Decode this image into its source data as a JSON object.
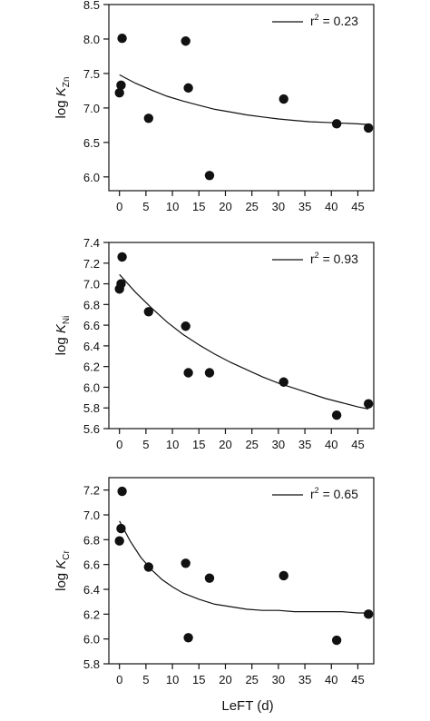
{
  "chart_data": [
    {
      "type": "scatter",
      "ylabel": {
        "prefix": "log ",
        "symbol": "K",
        "subscript": "Zn"
      },
      "xlim": [
        -2,
        48
      ],
      "ylim": [
        5.8,
        8.5
      ],
      "xticks": [
        0,
        5,
        10,
        15,
        20,
        25,
        30,
        35,
        40,
        45
      ],
      "yticks": [
        "6.0",
        "6.5",
        "7.0",
        "7.5",
        "8.0",
        "8.5"
      ],
      "points": {
        "x": [
          0,
          0.3,
          0.5,
          5.5,
          12.5,
          13,
          17,
          31,
          41,
          47
        ],
        "y": [
          7.22,
          7.33,
          8.01,
          6.85,
          7.97,
          7.29,
          6.02,
          7.13,
          6.77,
          6.71
        ]
      },
      "fit": {
        "x": [
          0,
          3,
          6,
          9,
          12,
          15,
          18,
          21,
          24,
          27,
          30,
          33,
          36,
          39,
          42,
          45,
          47
        ],
        "y": [
          7.48,
          7.36,
          7.26,
          7.17,
          7.1,
          7.04,
          6.98,
          6.94,
          6.9,
          6.87,
          6.84,
          6.82,
          6.8,
          6.79,
          6.78,
          6.77,
          6.76
        ]
      },
      "legend": {
        "label_prefix": "r",
        "label_exp": "2",
        "label_value": " = 0.23",
        "position": "top-right"
      }
    },
    {
      "type": "scatter",
      "ylabel": {
        "prefix": "log ",
        "symbol": "K",
        "subscript": "Ni"
      },
      "xlim": [
        -2,
        48
      ],
      "ylim": [
        5.6,
        7.4
      ],
      "xticks": [
        0,
        5,
        10,
        15,
        20,
        25,
        30,
        35,
        40,
        45
      ],
      "yticks": [
        "5.6",
        "5.8",
        "6.0",
        "6.2",
        "6.4",
        "6.6",
        "6.8",
        "7.0",
        "7.2",
        "7.4"
      ],
      "points": {
        "x": [
          0,
          0.3,
          0.5,
          5.5,
          12.5,
          13,
          17,
          31,
          41,
          47
        ],
        "y": [
          6.95,
          7.0,
          7.26,
          6.73,
          6.59,
          6.14,
          6.14,
          6.05,
          5.73,
          5.84
        ]
      },
      "fit": {
        "x": [
          0,
          3,
          6,
          9,
          12,
          15,
          18,
          21,
          24,
          27,
          30,
          33,
          36,
          39,
          42,
          45,
          47
        ],
        "y": [
          7.09,
          6.92,
          6.77,
          6.63,
          6.51,
          6.41,
          6.32,
          6.24,
          6.17,
          6.1,
          6.04,
          5.99,
          5.94,
          5.89,
          5.85,
          5.81,
          5.79
        ]
      },
      "legend": {
        "label_prefix": "r",
        "label_exp": "2",
        "label_value": " = 0.93",
        "position": "top-right"
      }
    },
    {
      "type": "scatter",
      "ylabel": {
        "prefix": "log ",
        "symbol": "K",
        "subscript": "Cr"
      },
      "xlim": [
        -2,
        48
      ],
      "ylim": [
        5.8,
        7.3
      ],
      "xticks": [
        0,
        5,
        10,
        15,
        20,
        25,
        30,
        35,
        40,
        45
      ],
      "yticks": [
        "5.8",
        "6.0",
        "6.2",
        "6.4",
        "6.6",
        "6.8",
        "7.0",
        "7.2"
      ],
      "points": {
        "x": [
          0,
          0.3,
          0.5,
          5.5,
          12.5,
          13,
          17,
          31,
          41,
          47
        ],
        "y": [
          6.79,
          6.89,
          7.19,
          6.58,
          6.61,
          6.01,
          6.49,
          6.51,
          5.99,
          6.2
        ]
      },
      "fit": {
        "x": [
          0,
          2,
          4,
          6,
          8,
          10,
          12,
          15,
          18,
          21,
          24,
          27,
          30,
          33,
          36,
          39,
          42,
          45,
          47
        ],
        "y": [
          6.95,
          6.79,
          6.66,
          6.56,
          6.48,
          6.42,
          6.37,
          6.32,
          6.28,
          6.26,
          6.24,
          6.23,
          6.23,
          6.22,
          6.22,
          6.22,
          6.22,
          6.21,
          6.21
        ]
      },
      "legend": {
        "label_prefix": "r",
        "label_exp": "2",
        "label_value": " = 0.65",
        "position": "top-right"
      }
    }
  ],
  "shared_xlabel": "LeFT (d)"
}
